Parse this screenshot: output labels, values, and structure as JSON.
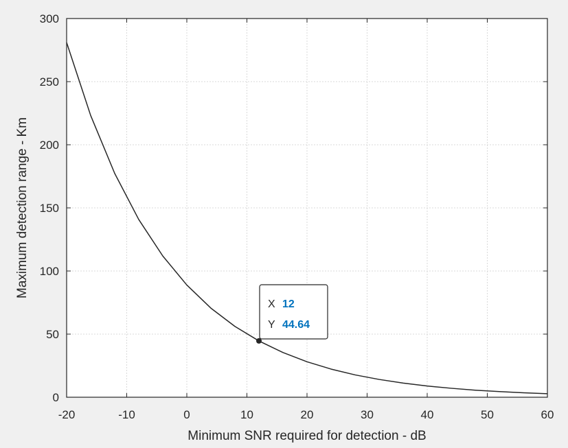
{
  "chart_data": {
    "type": "line",
    "xlabel": "Minimum SNR required for detection - dB",
    "ylabel": "Maximum detection range - Km",
    "xlim": [
      -20,
      60
    ],
    "ylim": [
      0,
      300
    ],
    "xticks": [
      -20,
      -10,
      0,
      10,
      20,
      30,
      40,
      50,
      60
    ],
    "yticks": [
      0,
      50,
      100,
      150,
      200,
      250,
      300
    ],
    "grid": true,
    "series": [
      {
        "x": [
          -20,
          -16,
          -12,
          -8,
          -4,
          0,
          4,
          8,
          12,
          16,
          20,
          24,
          28,
          32,
          36,
          40,
          44,
          48,
          52,
          56,
          60
        ],
        "y": [
          281.0,
          223.2,
          177.3,
          140.8,
          111.9,
          88.9,
          70.6,
          56.1,
          44.6,
          35.4,
          28.1,
          22.3,
          17.7,
          14.1,
          11.2,
          8.9,
          7.1,
          5.6,
          4.5,
          3.5,
          2.8
        ],
        "color": "#262626"
      }
    ],
    "annotations": [
      {
        "type": "datatip",
        "x": 12,
        "y": 44.64,
        "x_key": "X",
        "x_value": "12",
        "y_key": "Y",
        "y_value": "44.64"
      }
    ]
  },
  "colors": {
    "background": "#f0f0f0",
    "axes_background": "#ffffff",
    "line": "#262626",
    "grid": "#d9d9d9",
    "datatip_value": "#0072BD"
  }
}
